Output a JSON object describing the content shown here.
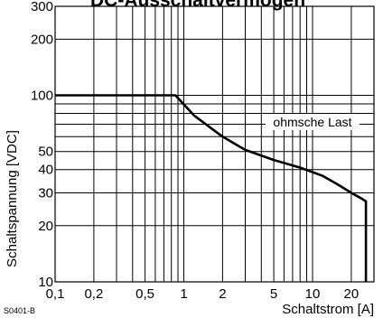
{
  "chart_data": {
    "type": "line",
    "title": "DC-Ausschaltvermögen",
    "xlabel": "Schaltstrom [A]",
    "ylabel": "Schaltspannung [VDC]",
    "x_scale": "log",
    "y_scale": "log",
    "xlim": [
      0.1,
      30
    ],
    "ylim": [
      10,
      300
    ],
    "x_tick_labels": [
      {
        "value": 0.1,
        "label": "0,1"
      },
      {
        "value": 0.2,
        "label": "0,2"
      },
      {
        "value": 0.5,
        "label": "0,5"
      },
      {
        "value": 1,
        "label": "1"
      },
      {
        "value": 2,
        "label": "2"
      },
      {
        "value": 5,
        "label": "5"
      },
      {
        "value": 10,
        "label": "10"
      },
      {
        "value": 20,
        "label": "20"
      }
    ],
    "y_tick_labels": [
      {
        "value": 10,
        "label": "10"
      },
      {
        "value": 20,
        "label": "20"
      },
      {
        "value": 30,
        "label": "30"
      },
      {
        "value": 40,
        "label": "40"
      },
      {
        "value": 50,
        "label": "50"
      },
      {
        "value": 100,
        "label": "100"
      },
      {
        "value": 200,
        "label": "200"
      },
      {
        "value": 300,
        "label": "300"
      }
    ],
    "x_gridlines": [
      0.1,
      0.2,
      0.3,
      0.4,
      0.5,
      0.6,
      0.7,
      0.8,
      0.9,
      1,
      2,
      3,
      4,
      5,
      6,
      7,
      8,
      9,
      10,
      20,
      30
    ],
    "y_gridlines": [
      10,
      20,
      30,
      40,
      50,
      60,
      70,
      80,
      90,
      100,
      200,
      300
    ],
    "grid": true,
    "series": [
      {
        "name": "ohmsche Last",
        "x": [
          0.1,
          0.86,
          1.2,
          2,
          3,
          5,
          8,
          12,
          16,
          20,
          24,
          26,
          26
        ],
        "y": [
          100,
          100,
          78,
          60,
          51,
          45,
          41,
          37,
          33,
          30,
          28,
          27,
          10
        ]
      }
    ],
    "annotations": [
      {
        "text": "ohmsche Last",
        "x": 10,
        "y": 72
      }
    ],
    "footnote": "S0401-B"
  }
}
